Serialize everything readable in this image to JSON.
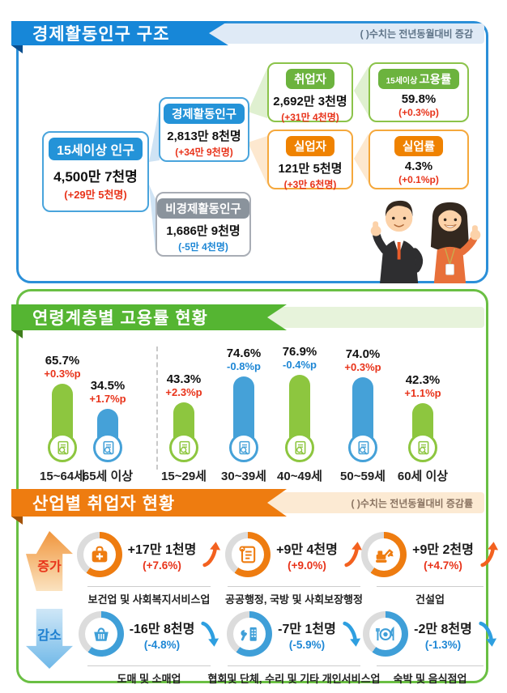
{
  "colors": {
    "section1_accent": "#1787d8",
    "section2_accent": "#55b532",
    "section3_accent": "#ee7c10",
    "bar_green": "#8dc63f",
    "bar_blue": "#45a1d8",
    "increase_text": "#e8331a",
    "decrease_text": "#1e87d5"
  },
  "section1": {
    "title": "경제활동인구 구조",
    "note": "( )수치는 전년동월대비 증감",
    "boxes": {
      "pop15": {
        "label": "15세이상 인구",
        "value": "4,500만 7천명",
        "change": "(+29만 5천명)"
      },
      "active": {
        "label": "경제활동인구",
        "value": "2,813만 8천명",
        "change": "(+34만 9천명)"
      },
      "inactive": {
        "label": "비경제활동인구",
        "value": "1,686만 9천명",
        "change": "(-5만 4천명)"
      },
      "employed": {
        "label": "취업자",
        "value": "2,692만 3천명",
        "change": "(+31만 4천명)"
      },
      "emp_rate": {
        "label_small": "15세이상",
        "label": "고용률",
        "value": "59.8%",
        "change": "(+0.3%p)"
      },
      "unemployed": {
        "label": "실업자",
        "value": "121만 5천명",
        "change": "(+3만 6천명)"
      },
      "unemp_rate": {
        "label": "실업률",
        "value": "4.3%",
        "change": "(+0.1%p)"
      }
    }
  },
  "section2": {
    "title": "연령계층별 고용률 현황",
    "chart_data": {
      "type": "bar",
      "title": "연령계층별 고용률 현황",
      "categories": [
        "15~64세",
        "65세 이상",
        "15~29세",
        "30~39세",
        "40~49세",
        "50~59세",
        "60세 이상"
      ],
      "values": [
        65.7,
        34.5,
        43.3,
        74.6,
        76.9,
        74.0,
        42.3
      ],
      "value_labels": [
        "65.7%",
        "34.5%",
        "43.3%",
        "74.6%",
        "76.9%",
        "74.0%",
        "42.3%"
      ],
      "changes": [
        "+0.3%p",
        "+1.7%p",
        "+2.3%p",
        "-0.8%p",
        "-0.4%p",
        "+0.3%p",
        "+1.1%p"
      ],
      "bar_colors": [
        "green",
        "blue",
        "green",
        "blue",
        "green",
        "blue",
        "green"
      ],
      "xlabel": "",
      "ylabel": "",
      "ylim": [
        0,
        100
      ],
      "grid": false,
      "legend": "none",
      "divider_after_index": 1
    }
  },
  "section3": {
    "title": "산업별 취업자 현황",
    "note": "( )수치는 전년동월대비 증감률",
    "increase_label": "증가",
    "decrease_label": "감소",
    "increase": [
      {
        "icon": "medical-bag-icon",
        "value": "+17만 1천명",
        "rate": "(+7.6%)",
        "name": "보건업 및 사회복지서비스업"
      },
      {
        "icon": "scroll-icon",
        "value": "+9만 4천명",
        "rate": "(+9.0%)",
        "name": "공공행정, 국방 및 사회보장행정"
      },
      {
        "icon": "excavator-icon",
        "value": "+9만 2천명",
        "rate": "(+4.7%)",
        "name": "건설업"
      }
    ],
    "decrease": [
      {
        "icon": "basket-icon",
        "value": "-16만 8천명",
        "rate": "(-4.8%)",
        "name": "도매 및 소매업"
      },
      {
        "icon": "repair-icon",
        "value": "-7만 1천명",
        "rate": "(-5.9%)",
        "name": "협회및 단체, 수리 및 기타 개인서비스업"
      },
      {
        "icon": "restaurant-icon",
        "value": "-2만 8천명",
        "rate": "(-1.3%)",
        "name": "숙박 및 음식점업"
      }
    ]
  }
}
